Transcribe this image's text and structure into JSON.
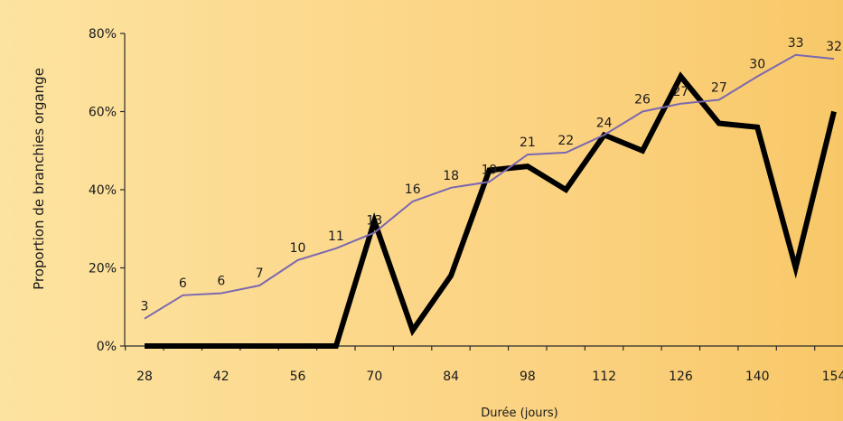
{
  "chart_data": {
    "type": "line",
    "xlabel": "Durée (jours)",
    "ylabel": "Proportion de branchies organge",
    "ylim": [
      0,
      80
    ],
    "xlim": [
      28,
      154
    ],
    "yticks": [
      0,
      20,
      40,
      60,
      80
    ],
    "ytick_labels": [
      "0%",
      "20%",
      "40%",
      "60%",
      "80%"
    ],
    "xticks": [
      28,
      42,
      56,
      70,
      84,
      98,
      112,
      126,
      140,
      154
    ],
    "xtick_labels": [
      "28",
      "42",
      "56",
      "70",
      "84",
      "98",
      "112",
      "126",
      "140",
      "154"
    ],
    "x": [
      28,
      35,
      42,
      49,
      56,
      63,
      70,
      77,
      84,
      91,
      98,
      105,
      112,
      119,
      126,
      133,
      140,
      147,
      154
    ],
    "series": [
      {
        "color": "#000000",
        "values": [
          0,
          0,
          0,
          0,
          0,
          0,
          32,
          4,
          18,
          45,
          46,
          40,
          54,
          50,
          69,
          57,
          56,
          20,
          60
        ]
      },
      {
        "color": "#7a68b0",
        "values": [
          7,
          13,
          13.5,
          15.5,
          22,
          25,
          29,
          37,
          40.5,
          42,
          49,
          49.5,
          54,
          60,
          62,
          63,
          69,
          74.5,
          73.5
        ],
        "labels": [
          "3",
          "6",
          "6",
          "7",
          "10",
          "11",
          "13",
          "16",
          "18",
          "19",
          "21",
          "22",
          "24",
          "26",
          "27",
          "27",
          "30",
          "33",
          "32"
        ]
      }
    ],
    "grid": false,
    "legend": "none"
  }
}
